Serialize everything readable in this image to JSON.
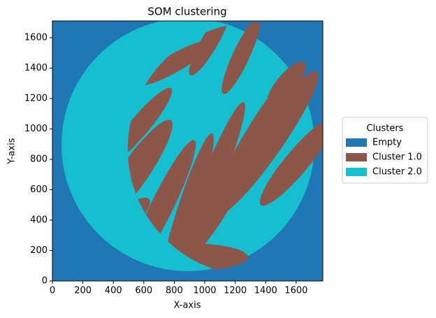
{
  "chart_data": {
    "type": "image",
    "title": "SOM clustering",
    "x_label": "X-axis",
    "y_label": "Y-axis",
    "xlim": [
      0,
      1775
    ],
    "ylim": [
      0,
      1710
    ],
    "xticks": [
      0,
      200,
      400,
      600,
      800,
      1000,
      1200,
      1400,
      1600
    ],
    "yticks": [
      0,
      200,
      400,
      600,
      800,
      1000,
      1200,
      1400,
      1600
    ],
    "legend_title": "Clusters",
    "classes": [
      {
        "name": "Empty",
        "color": "#1f77b4"
      },
      {
        "name": "Cluster 1.0",
        "color": "#8c564b"
      },
      {
        "name": "Cluster 2.0",
        "color": "#17becf"
      }
    ]
  }
}
